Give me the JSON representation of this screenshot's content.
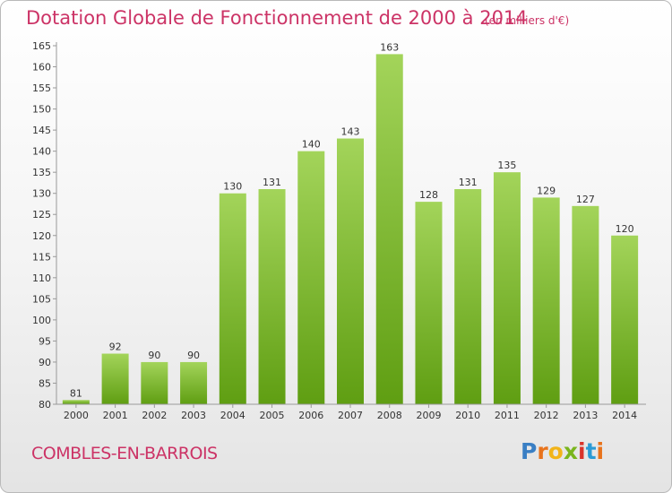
{
  "header": {
    "title": "Dotation Globale de Fonctionnement de 2000 à 2014",
    "subtitle": "(en milliers d'€)"
  },
  "footer": {
    "place_name": "COMBLES-EN-BARROIS",
    "brand_letters": [
      "P",
      "r",
      "o",
      "x",
      "i",
      "t",
      "i"
    ],
    "brand_colors": [
      "#3a7fc4",
      "#e8731c",
      "#f2b419",
      "#7ab51d",
      "#d9342b",
      "#2b9bd6",
      "#e8731c"
    ]
  },
  "colors": {
    "bar_top": "#a3d45a",
    "bar_bottom": "#5f9e12",
    "accent": "#cc3366"
  },
  "chart_data": {
    "type": "bar",
    "title": "Dotation Globale de Fonctionnement de 2000 à 2014",
    "subtitle": "(en milliers d'€)",
    "categories": [
      "2000",
      "2001",
      "2002",
      "2003",
      "2004",
      "2005",
      "2006",
      "2007",
      "2008",
      "2009",
      "2010",
      "2011",
      "2012",
      "2013",
      "2014"
    ],
    "values": [
      81,
      92,
      90,
      90,
      130,
      131,
      140,
      143,
      163,
      128,
      131,
      135,
      129,
      127,
      120
    ],
    "data_labels": [
      "81",
      "92",
      "90",
      "90",
      "130",
      "131",
      "140",
      "143",
      "163",
      "128",
      "131",
      "135",
      "129",
      "127",
      "120"
    ],
    "ylim": [
      80,
      165
    ],
    "yticks": [
      "80",
      "85",
      "90",
      "95",
      "100",
      "105",
      "110",
      "115",
      "120",
      "125",
      "130",
      "135",
      "140",
      "145",
      "150",
      "155",
      "160",
      "165"
    ],
    "grid": false,
    "legend": "none"
  }
}
